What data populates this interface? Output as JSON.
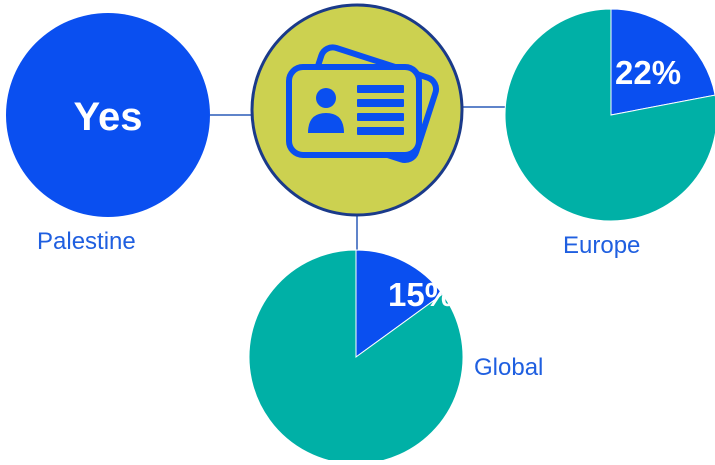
{
  "colors": {
    "blue": "#0a4ff0",
    "teal": "#00b0a6",
    "yellow": "#ccd150",
    "navy": "#1a3a8a",
    "connector": "#2a5bb8",
    "label": "#1f5fe0",
    "white": "#ffffff"
  },
  "center": {
    "icon": "id-card-icon"
  },
  "chart_data": [
    {
      "type": "indicator",
      "label": "Palestine",
      "value": "Yes"
    },
    {
      "type": "pie",
      "label": "Europe",
      "slices": [
        {
          "value": 22,
          "color": "#0a4ff0",
          "value_label": "22%"
        },
        {
          "value": 78,
          "color": "#00b0a6"
        }
      ]
    },
    {
      "type": "pie",
      "label": "Global",
      "slices": [
        {
          "value": 15,
          "color": "#0a4ff0",
          "value_label": "15%"
        },
        {
          "value": 85,
          "color": "#00b0a6"
        }
      ]
    }
  ]
}
